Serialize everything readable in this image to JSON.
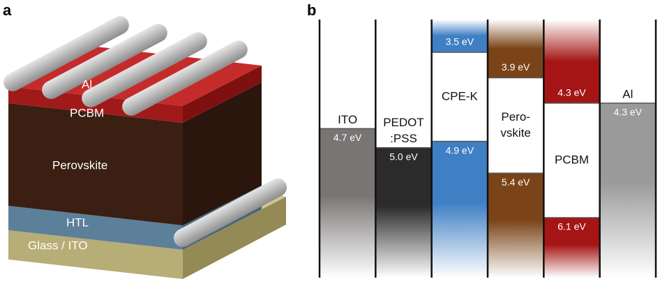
{
  "panels": [
    {
      "label": "a",
      "layers": [
        "Al",
        "PCBM",
        "Perovskite",
        "HTL",
        "Glass / ITO"
      ]
    },
    {
      "label": "b",
      "columns": [
        {
          "name": [
            "ITO"
          ],
          "color": "#7a7575",
          "lower": {
            "value": 4.7,
            "label": "4.7 eV"
          }
        },
        {
          "name": [
            "PEDOT",
            ":PSS"
          ],
          "color": "#2b2b2b",
          "lower": {
            "value": 5.0,
            "label": "5.0 eV"
          }
        },
        {
          "name": [
            "CPE-K"
          ],
          "color": "#3f7fc4",
          "upper": {
            "value": 3.5,
            "label": "3.5 eV"
          },
          "lower": {
            "value": 4.9,
            "label": "4.9 eV"
          }
        },
        {
          "name": [
            "Pero-",
            "vskite"
          ],
          "color": "#7a4418",
          "upper": {
            "value": 3.9,
            "label": "3.9 eV"
          },
          "lower": {
            "value": 5.4,
            "label": "5.4 eV"
          }
        },
        {
          "name": [
            "PCBM"
          ],
          "color": "#a51515",
          "upper": {
            "value": 4.3,
            "label": "4.3 eV"
          },
          "lower": {
            "value": 6.1,
            "label": "6.1 eV"
          }
        },
        {
          "name": [
            "Al"
          ],
          "color": "#9a9a9a",
          "lower": {
            "value": 4.3,
            "label": "4.3 eV"
          }
        }
      ]
    }
  ]
}
